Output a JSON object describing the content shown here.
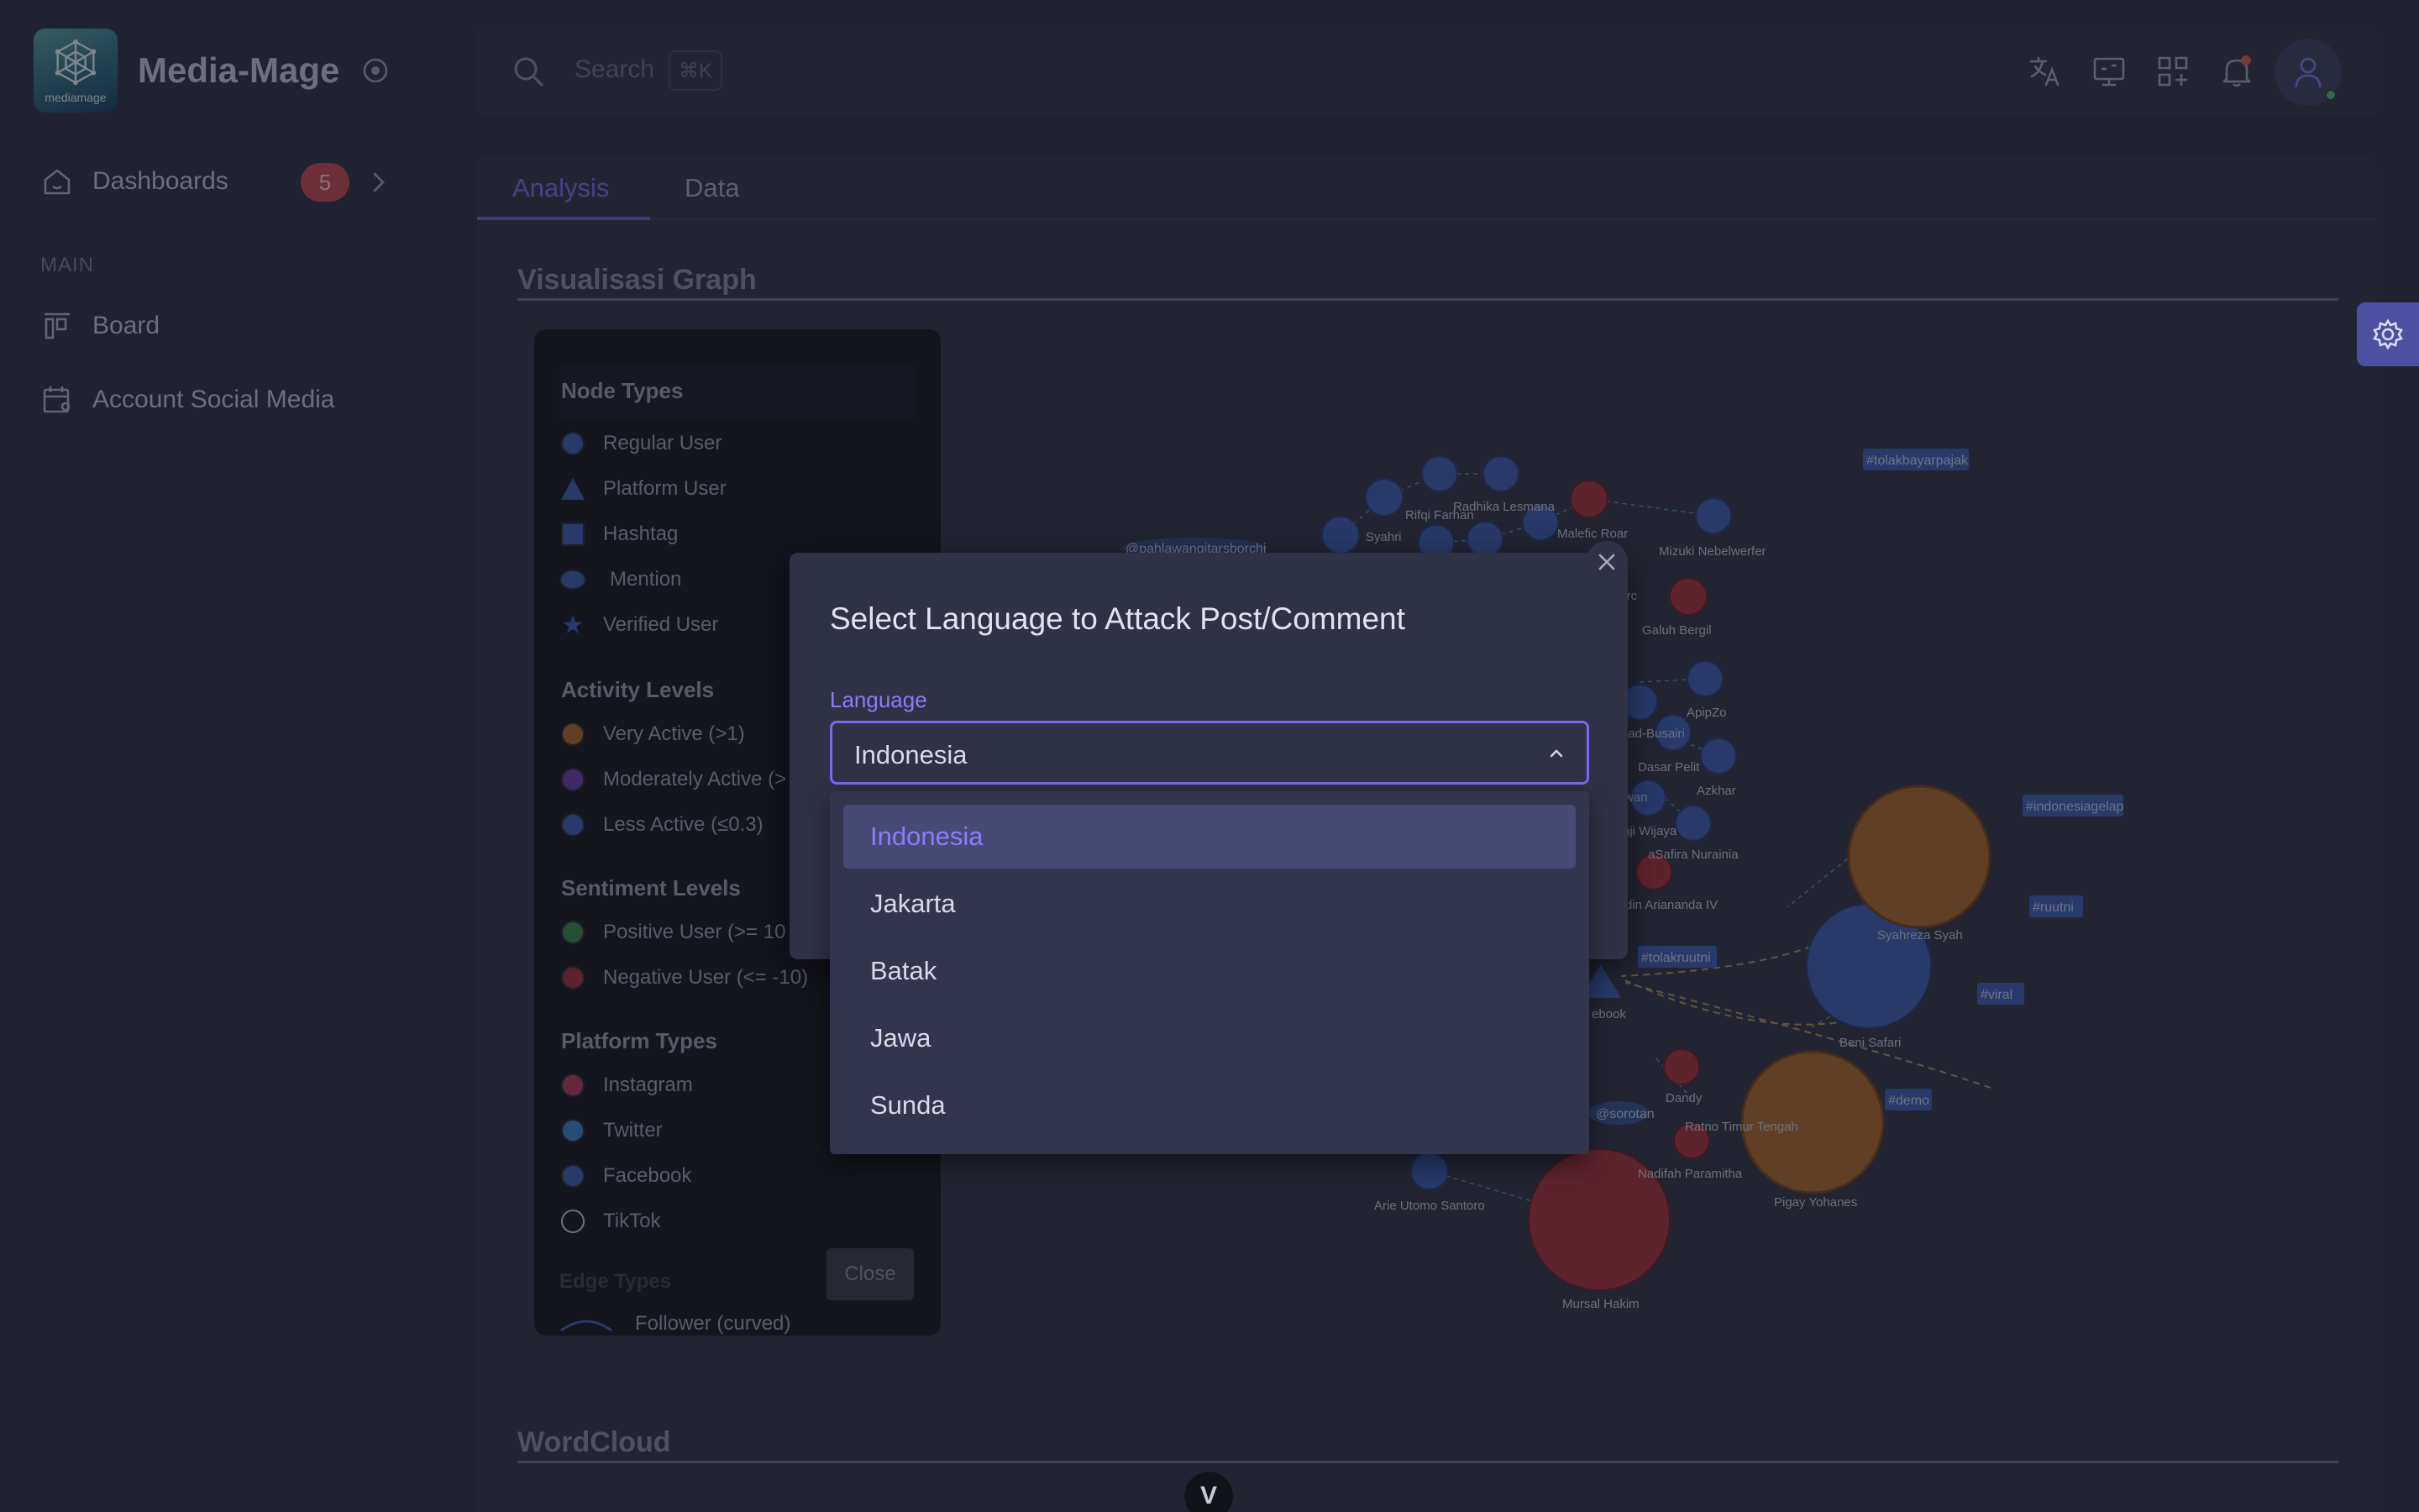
{
  "brand": {
    "name": "Media-Mage",
    "logo_text": "mediamage"
  },
  "sidebar": {
    "dashboards_label": "Dashboards",
    "dashboards_badge": "5",
    "section_label": "MAIN",
    "items": [
      {
        "label": "Board"
      },
      {
        "label": "Account Social Media"
      }
    ]
  },
  "topbar": {
    "search_placeholder": "Search",
    "search_shortcut": "⌘K"
  },
  "tabs": [
    {
      "label": "Analysis"
    },
    {
      "label": "Data"
    }
  ],
  "sections": {
    "graph_title": "Visualisasi Graph",
    "wordcloud_title": "WordCloud"
  },
  "legend": {
    "node_types_title": "Node Types",
    "node_types": [
      "Regular User",
      "Platform User",
      "Hashtag",
      "Mention",
      "Verified User"
    ],
    "activity_title": "Activity Levels",
    "activity": [
      "Very Active (>1)",
      "Moderately Active (>",
      "Less Active (≤0.3)"
    ],
    "sentiment_title": "Sentiment Levels",
    "sentiment": [
      "Positive User (>= 10",
      "Negative User (<= -10)"
    ],
    "platform_title": "Platform Types",
    "platforms": [
      "Instagram",
      "Twitter",
      "Facebook",
      "TikTok"
    ],
    "edge_title": "Edge Types",
    "edge_follower": "Follower (curved)",
    "close_label": "Close"
  },
  "graph_labels": {
    "tolakbayarpajak": "#tolakbayarpajak",
    "indonesiagelap": "#indonesiagelap",
    "ruutni": "#ruutni",
    "viral": "#viral",
    "demo": "#demo",
    "tolakruutni": "#tolakruutni",
    "sorotan": "@sorotan",
    "mention_left": "@pahlawangitarsborchi",
    "syahri": "Syahri",
    "rifqi": "Rifqi Farhan",
    "radhika": "Radhika Lesmana",
    "malefic": "Malefic Roar",
    "mizuki": "Mizuki Nebelwerfer",
    "arc": "n Arc",
    "bergil": "Galuh Bergil",
    "apip": "ApipZo",
    "busairi": "nad-Busairi",
    "dasar": "Dasar Pelit",
    "azkhar": "Azkhar",
    "wan": "wan",
    "aji": "nji Wijaya",
    "safira": "aSafira Nurainia",
    "arianand": "din Ariananda IV",
    "syahreza": "Syahreza Syah",
    "beni": "Beni Safari",
    "ebook": "ebook",
    "dandy": "Dandy",
    "ratno": "Ratno Timur Tengah",
    "nadifah": "Nadifah Paramitha",
    "pigay": "Pigay Yohanes",
    "arie": "Arie Utomo Santoro",
    "mursal": "Mursal Hakim"
  },
  "modal": {
    "title": "Select Language to Attack Post/Comment",
    "field_label": "Language",
    "selected_value": "Indonesia",
    "options": [
      "Indonesia",
      "Jakarta",
      "Batak",
      "Jawa",
      "Sunda"
    ]
  },
  "colors": {
    "accent": "#7b6cf6",
    "regular_user": "#3f5fb8",
    "very_active": "#b06a2c",
    "moderately_active": "#6a3fb0",
    "positive": "#3d8a4a",
    "negative": "#a8323c"
  }
}
